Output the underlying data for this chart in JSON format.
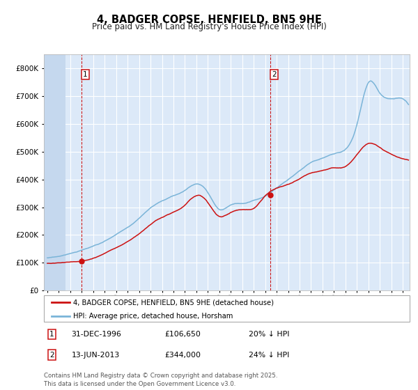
{
  "title": "4, BADGER COPSE, HENFIELD, BN5 9HE",
  "subtitle": "Price paid vs. HM Land Registry's House Price Index (HPI)",
  "ylim": [
    0,
    850000
  ],
  "yticks": [
    0,
    100000,
    200000,
    300000,
    400000,
    500000,
    600000,
    700000,
    800000
  ],
  "ytick_labels": [
    "£0",
    "£100K",
    "£200K",
    "£300K",
    "£400K",
    "£500K",
    "£600K",
    "£700K",
    "£800K"
  ],
  "background_color": "#dce9f8",
  "hatch_color": "#c5d8ee",
  "grid_color": "#ffffff",
  "hpi_color": "#7ab4d8",
  "price_color": "#cc1111",
  "marker1_x": 1996.99,
  "marker2_x": 2013.45,
  "marker1_price": 106650,
  "marker2_price": 344000,
  "legend_line1": "4, BADGER COPSE, HENFIELD, BN5 9HE (detached house)",
  "legend_line2": "HPI: Average price, detached house, Horsham",
  "footer": "Contains HM Land Registry data © Crown copyright and database right 2025.\nThis data is licensed under the Open Government Licence v3.0.",
  "xmin": 1993.7,
  "xmax": 2025.6
}
